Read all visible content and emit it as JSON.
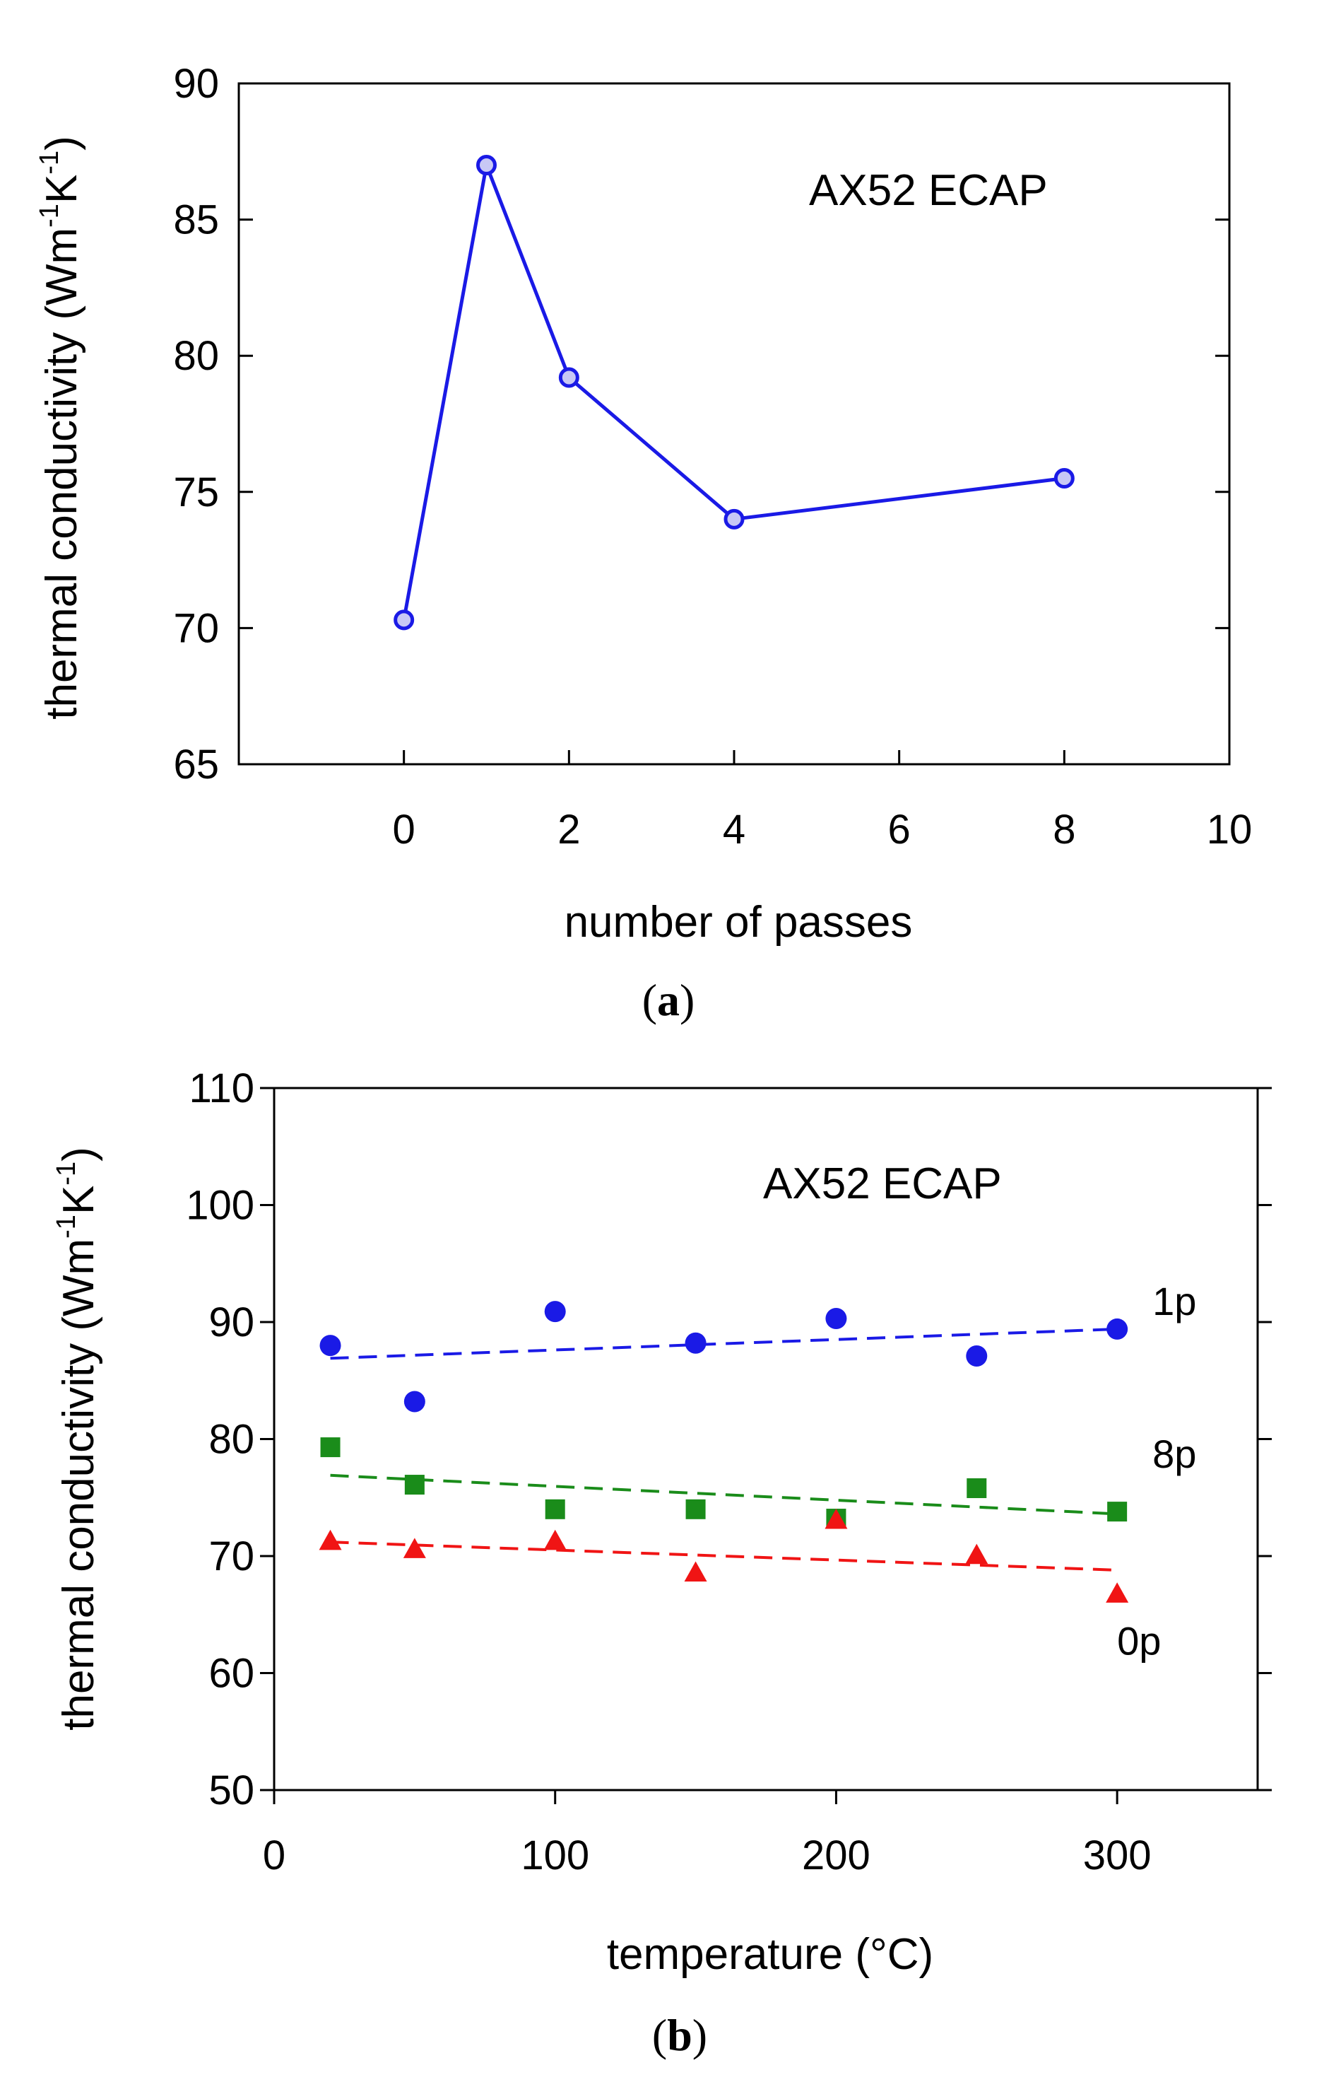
{
  "chart_data": [
    {
      "type": "line",
      "panel_label": {
        "open": "(",
        "letter": "a",
        "close": ")"
      },
      "annotation": "AX52 ECAP",
      "xlabel": "number of passes",
      "ylabel": {
        "main": "thermal conductivity (Wm",
        "sup1": "-1",
        "mid": "K",
        "sup2": "-1",
        "close": ")"
      },
      "xlim": [
        -2,
        10
      ],
      "ylim": [
        65,
        90
      ],
      "xticks": [
        0,
        2,
        4,
        6,
        8,
        10
      ],
      "yticks": [
        65,
        70,
        75,
        80,
        85,
        90
      ],
      "grid": false,
      "series": [
        {
          "name": "AX52 ECAP",
          "color": "#1a1ae6",
          "marker": "open-circle",
          "x": [
            0,
            1,
            2,
            4,
            8
          ],
          "y": [
            70.3,
            87.0,
            79.2,
            74.0,
            75.5
          ]
        }
      ]
    },
    {
      "type": "scatter",
      "panel_label": {
        "open": "(",
        "letter": "b",
        "close": ")"
      },
      "annotation": "AX52 ECAP",
      "xlabel": "temperature (°C)",
      "ylabel": {
        "main": "thermal conductivity (Wm",
        "sup1": "-1",
        "mid": "K",
        "sup2": "-1",
        "close": ")"
      },
      "xlim": [
        0,
        350
      ],
      "ylim": [
        50,
        110
      ],
      "xticks": [
        0,
        100,
        200,
        300
      ],
      "yticks": [
        50,
        60,
        70,
        80,
        90,
        100,
        110
      ],
      "grid": false,
      "series": [
        {
          "name": "1p",
          "color": "#1a1ae6",
          "marker": "circle",
          "x": [
            20,
            50,
            100,
            150,
            200,
            250,
            300
          ],
          "y": [
            88.0,
            83.2,
            90.9,
            88.2,
            90.3,
            87.1,
            89.4
          ],
          "fit": [
            [
              20,
              86.9
            ],
            [
              300,
              89.4
            ]
          ]
        },
        {
          "name": "8p",
          "color": "#1a8c1a",
          "marker": "square",
          "x": [
            20,
            50,
            100,
            150,
            200,
            250,
            300
          ],
          "y": [
            79.3,
            76.1,
            74.0,
            74.0,
            73.2,
            75.8,
            73.8
          ],
          "fit": [
            [
              20,
              76.9
            ],
            [
              300,
              73.6
            ]
          ]
        },
        {
          "name": "0p",
          "color": "#f01414",
          "marker": "triangle",
          "x": [
            20,
            50,
            100,
            150,
            200,
            250,
            300
          ],
          "y": [
            71.2,
            70.5,
            71.2,
            68.5,
            73.0,
            70.0,
            66.7
          ],
          "fit": [
            [
              20,
              71.2
            ],
            [
              300,
              68.8
            ]
          ]
        }
      ]
    }
  ]
}
